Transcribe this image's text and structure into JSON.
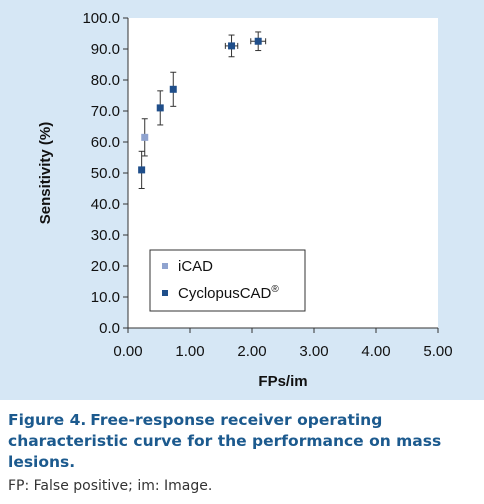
{
  "chart_data": {
    "type": "scatter",
    "xlabel": "FPs/im",
    "ylabel": "Sensitivity (%)",
    "xlim": [
      0,
      5
    ],
    "ylim": [
      0,
      100
    ],
    "x_ticks": [
      "0.00",
      "1.00",
      "2.00",
      "3.00",
      "4.00",
      "5.00"
    ],
    "y_ticks": [
      "0.0",
      "10.0",
      "20.0",
      "30.0",
      "40.0",
      "50.0",
      "60.0",
      "70.0",
      "80.0",
      "90.0",
      "100.0"
    ],
    "grid": false,
    "legend_position": "bottom-left",
    "series": [
      {
        "name": "iCAD",
        "color": "#8fa3cf",
        "points": [
          {
            "x": 0.27,
            "y": 61.5,
            "y_err": 6.0
          }
        ]
      },
      {
        "name": "CyclopusCAD",
        "name_superscript": "®",
        "color": "#1f4e8a",
        "points": [
          {
            "x": 0.22,
            "y": 51.0,
            "y_err": 6.0
          },
          {
            "x": 0.52,
            "y": 71.0,
            "y_err": 5.5
          },
          {
            "x": 0.73,
            "y": 77.0,
            "y_err": 5.5
          },
          {
            "x": 1.67,
            "y": 91.0,
            "y_err": 3.5,
            "x_err": 0.1
          },
          {
            "x": 2.1,
            "y": 92.5,
            "y_err": 3.0,
            "x_err": 0.12
          }
        ]
      }
    ]
  },
  "caption": {
    "label": "Figure 4.",
    "text": "Free-response receiver operating characteristic curve for the performance on mass lesions."
  },
  "footnote": "FP: False positive; im: Image."
}
